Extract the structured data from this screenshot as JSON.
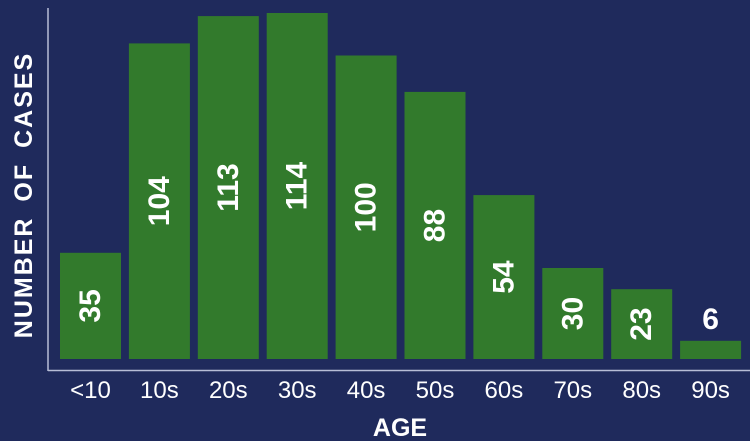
{
  "colors": {
    "background": "#1f2a5c",
    "bar": "#327a2c",
    "text": "#ffffff",
    "axis": "#b7bdd6"
  },
  "chart_data": {
    "type": "bar",
    "categories": [
      "<10",
      "10s",
      "20s",
      "30s",
      "40s",
      "50s",
      "60s",
      "70s",
      "80s",
      "90s"
    ],
    "values": [
      35,
      104,
      113,
      114,
      100,
      88,
      54,
      30,
      23,
      6
    ],
    "data_labels": [
      "35",
      "104",
      "113",
      "114",
      "100",
      "88",
      "54",
      "30",
      "23",
      "6"
    ],
    "xlabel": "AGE",
    "ylabel": "NUMBER OF CASES",
    "ylim": [
      0,
      115
    ],
    "grid": false,
    "legend": "none"
  }
}
